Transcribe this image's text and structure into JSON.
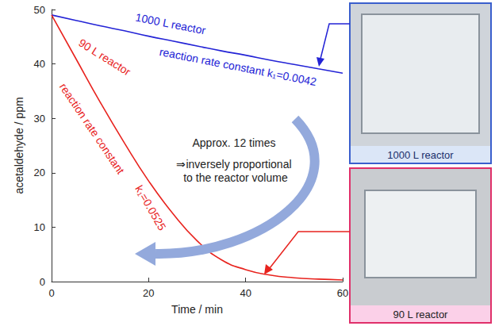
{
  "chart_data": {
    "type": "line",
    "x": [
      0,
      5,
      10,
      15,
      20,
      25,
      30,
      35,
      40,
      45,
      50,
      55,
      60
    ],
    "series": [
      {
        "name": "1000 L reactor",
        "color": "#2323d6",
        "label": "reaction rate constant k₁=0.0042",
        "values": [
          49,
          48.0,
          47.0,
          46.1,
          45.1,
          44.2,
          43.3,
          42.4,
          41.6,
          40.7,
          39.9,
          39.1,
          38.3
        ]
      },
      {
        "name": "90 L reactor",
        "color": "#e8231e",
        "label": "reaction rate constant k₁=0.0525",
        "values": [
          49,
          41,
          33,
          25.5,
          18.5,
          12.5,
          7.5,
          4,
          2.2,
          1.2,
          0.7,
          0.45,
          0.3
        ]
      }
    ],
    "x_label": "Time / min",
    "y_label": "acetaldehyde / ppm",
    "xlim": [
      0,
      60
    ],
    "xticks": [
      0,
      20,
      40,
      60
    ],
    "ylim": [
      0,
      50
    ],
    "yticks": [
      0,
      10,
      20,
      30,
      40,
      50
    ],
    "grid": false,
    "annotations": [
      "Approx. 12 times",
      "⇒inversely proportional to the reactor volume"
    ]
  }
}
